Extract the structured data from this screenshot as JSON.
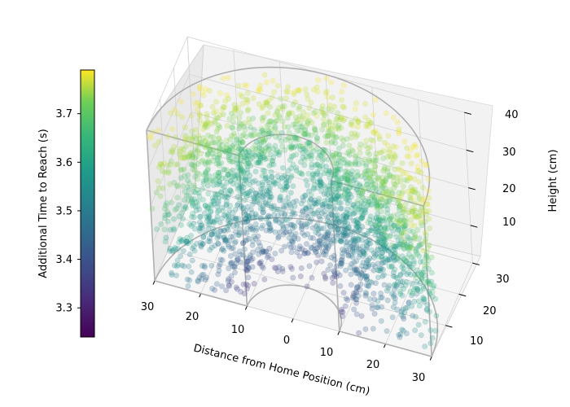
{
  "chart_data": {
    "type": "scatter",
    "projection": "3d",
    "shape": "half-annulus workspace in front of the home position",
    "marker_alpha": 0.25,
    "xlabel": "Distance from Home Position (cm)",
    "ylabel": "",
    "zlabel": "Height (cm)",
    "x_ticks": [
      "30",
      "20",
      "10",
      "0",
      "10",
      "20",
      "30"
    ],
    "y_ticks": [
      "10",
      "20",
      "30"
    ],
    "z_ticks": [
      "10",
      "20",
      "30",
      "40"
    ],
    "xlim": [
      -30,
      30
    ],
    "ylim": [
      0,
      30
    ],
    "zlim": [
      0,
      40
    ],
    "inner_radius_cm": 10,
    "outer_radius_cm": 30,
    "colorbar": {
      "label": "Additional Time to Reach (s)",
      "colormap": "viridis",
      "ticks": [
        "3.3",
        "3.4",
        "3.5",
        "3.6",
        "3.7"
      ],
      "min": 3.24,
      "max": 3.79
    },
    "trend": "time increases with height and with distance from the home position; lowest (~3.25 s) near the inner radius at low height, highest (~3.78 s) near the top",
    "point_count_approx": 2600,
    "grid": true
  }
}
